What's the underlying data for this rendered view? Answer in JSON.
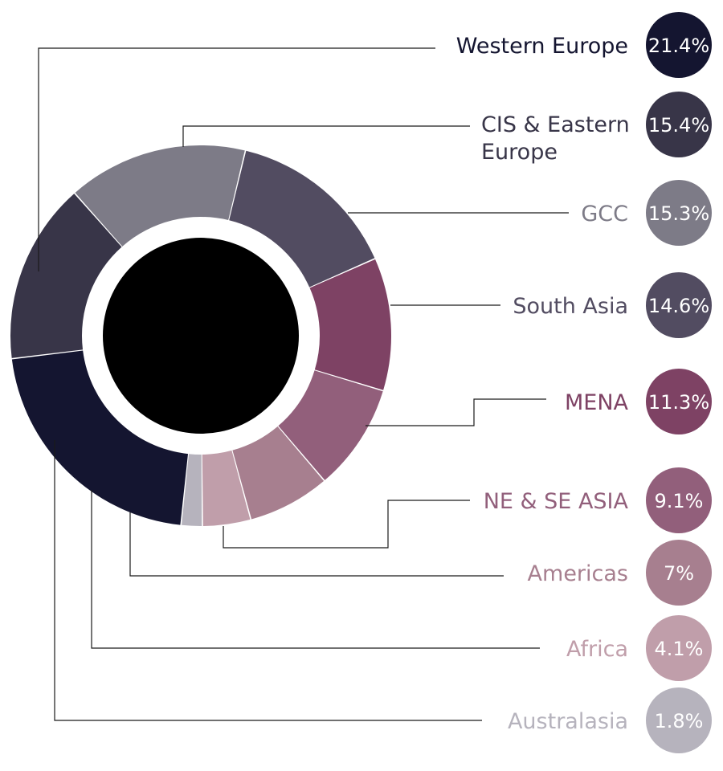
{
  "chart_data": {
    "type": "pie",
    "style": "donut",
    "title": "",
    "legend": "right",
    "series": [
      {
        "name": "Western Europe",
        "label_lines": [
          "Western Europe"
        ],
        "value": 21.4,
        "display": "21.4%",
        "color": "#141530",
        "text_color": "#141530"
      },
      {
        "name": "CIS & Eastern Europe",
        "label_lines": [
          "CIS & Eastern",
          "Europe"
        ],
        "value": 15.4,
        "display": "15.4%",
        "color": "#383548",
        "text_color": "#383548"
      },
      {
        "name": "GCC",
        "label_lines": [
          "GCC"
        ],
        "value": 15.3,
        "display": "15.3%",
        "color": "#7d7b87",
        "text_color": "#7d7b87"
      },
      {
        "name": "South Asia",
        "label_lines": [
          "South Asia"
        ],
        "value": 14.6,
        "display": "14.6%",
        "color": "#524c61",
        "text_color": "#524c61"
      },
      {
        "name": "MENA",
        "label_lines": [
          "MENA"
        ],
        "value": 11.3,
        "display": "11.3%",
        "color": "#7e4264",
        "text_color": "#7e4264"
      },
      {
        "name": "NE & SE ASIA",
        "label_lines": [
          "NE & SE ASIA"
        ],
        "value": 9.1,
        "display": "9.1%",
        "color": "#925f7b",
        "text_color": "#925f7b"
      },
      {
        "name": "Americas",
        "label_lines": [
          "Americas"
        ],
        "value": 7,
        "display": "7%",
        "color": "#a77f8f",
        "text_color": "#a77f8f"
      },
      {
        "name": "Africa",
        "label_lines": [
          "Africa"
        ],
        "value": 4.1,
        "display": "4.1%",
        "color": "#c09eaa",
        "text_color": "#c09eaa"
      },
      {
        "name": "Australasia",
        "label_lines": [
          "Australasia"
        ],
        "value": 1.8,
        "display": "1.8%",
        "color": "#b6b3bd",
        "text_color": "#b6b3bd"
      }
    ],
    "center_color": "#000000"
  }
}
